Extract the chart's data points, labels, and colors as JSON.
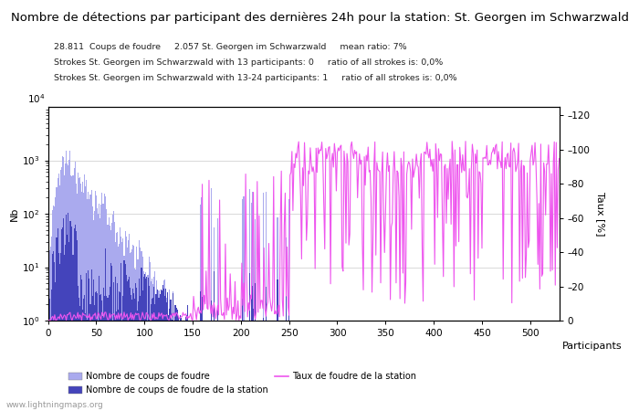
{
  "title": "Nombre de détections par participant des dernières 24h pour la station: St. Georgen im Schwarzwald",
  "subtitle_lines": [
    "28.811  Coups de foudre     2.057 St. Georgen im Schwarzwald     mean ratio: 7%",
    "Strokes St. Georgen im Schwarzwald with 13 participants: 0     ratio of all strokes is: 0,0%",
    "Strokes St. Georgen im Schwarzwald with 13-24 participants: 1     ratio of all strokes is: 0,0%"
  ],
  "xlabel": "Participants",
  "ylabel_left": "Nb",
  "ylabel_right": "Taux [%]",
  "n_participants": 530,
  "xlim": [
    0,
    530
  ],
  "ylim_right": [
    0,
    125
  ],
  "yticks_right": [
    0,
    20,
    40,
    60,
    80,
    100,
    120
  ],
  "ytick_labels_right": [
    "0",
    "20",
    "40",
    "60",
    "80",
    "100",
    "120"
  ],
  "color_all": "#aaaaee",
  "color_station": "#4444bb",
  "color_ratio": "#ee55ee",
  "color_grid": "#bbbbbb",
  "background_color": "#ffffff",
  "watermark": "www.lightningmaps.org",
  "legend_labels": [
    "Nombre de coups de foudre",
    "Nombre de coups de foudre de la station",
    "Taux de foudre de la station"
  ],
  "title_fontsize": 9.5,
  "label_fontsize": 8,
  "tick_fontsize": 7.5,
  "subtitle_fontsize": 6.8
}
